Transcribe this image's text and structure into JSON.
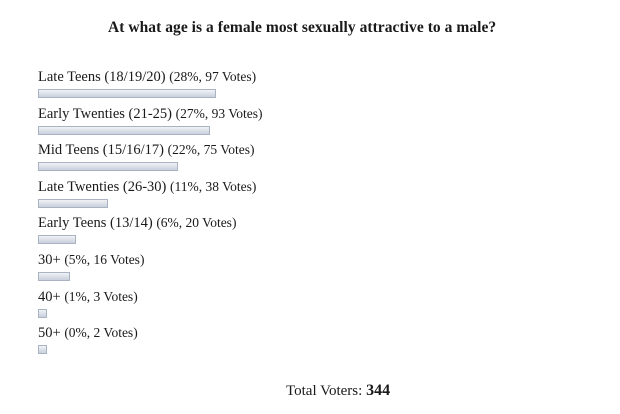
{
  "poll": {
    "question": "At what age is a female most sexually attractive to a male?",
    "options": [
      {
        "label": "Late Teens (18/19/20)",
        "stats": "(28%, 97 Votes)",
        "percent": 28
      },
      {
        "label": "Early Twenties (21-25)",
        "stats": "(27%, 93 Votes)",
        "percent": 27
      },
      {
        "label": "Mid Teens (15/16/17)",
        "stats": "(22%, 75 Votes)",
        "percent": 22
      },
      {
        "label": "Late Twenties (26-30)",
        "stats": "(11%, 38 Votes)",
        "percent": 11
      },
      {
        "label": "Early Teens (13/14)",
        "stats": "(6%, 20 Votes)",
        "percent": 6
      },
      {
        "label": "30+",
        "stats": "(5%, 16 Votes)",
        "percent": 5
      },
      {
        "label": "40+",
        "stats": "(1%, 3 Votes)",
        "percent": 1
      },
      {
        "label": "50+",
        "stats": "(0%, 2 Votes)",
        "percent": 0
      }
    ],
    "total_label": "Total Voters:",
    "total_value": "344"
  }
}
